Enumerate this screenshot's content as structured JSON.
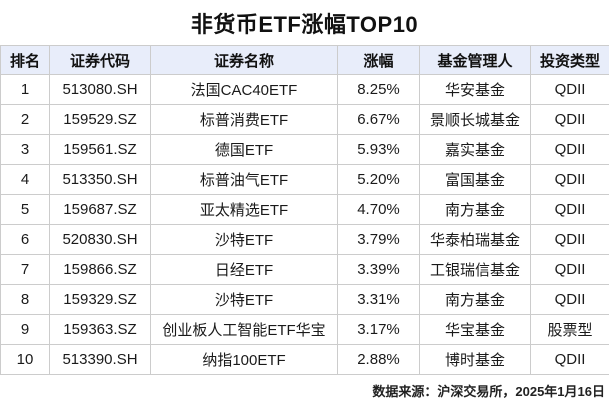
{
  "title": "非货币ETF涨幅TOP10",
  "footer": {
    "source": "数据来源：沪深交易所，2025年1月16日"
  },
  "colors": {
    "header_bg": "#e8edfa",
    "border": "#cccccc",
    "gain_red": "#e85252",
    "text": "#1a1a1a"
  },
  "table": {
    "headers": [
      "排名",
      "证券代码",
      "证券名称",
      "涨幅",
      "基金管理人",
      "投资类型"
    ],
    "rows": [
      {
        "rank": "1",
        "code": "513080.SH",
        "name": "法国CAC40ETF",
        "gain": "8.25%",
        "manager": "华安基金",
        "type": "QDII"
      },
      {
        "rank": "2",
        "code": "159529.SZ",
        "name": "标普消费ETF",
        "gain": "6.67%",
        "manager": "景顺长城基金",
        "type": "QDII"
      },
      {
        "rank": "3",
        "code": "159561.SZ",
        "name": "德国ETF",
        "gain": "5.93%",
        "manager": "嘉实基金",
        "type": "QDII"
      },
      {
        "rank": "4",
        "code": "513350.SH",
        "name": "标普油气ETF",
        "gain": "5.20%",
        "manager": "富国基金",
        "type": "QDII"
      },
      {
        "rank": "5",
        "code": "159687.SZ",
        "name": "亚太精选ETF",
        "gain": "4.70%",
        "manager": "南方基金",
        "type": "QDII"
      },
      {
        "rank": "6",
        "code": "520830.SH",
        "name": "沙特ETF",
        "gain": "3.79%",
        "manager": "华泰柏瑞基金",
        "type": "QDII"
      },
      {
        "rank": "7",
        "code": "159866.SZ",
        "name": "日经ETF",
        "gain": "3.39%",
        "manager": "工银瑞信基金",
        "type": "QDII"
      },
      {
        "rank": "8",
        "code": "159329.SZ",
        "name": "沙特ETF",
        "gain": "3.31%",
        "manager": "南方基金",
        "type": "QDII"
      },
      {
        "rank": "9",
        "code": "159363.SZ",
        "name": "创业板人工智能ETF华宝",
        "gain": "3.17%",
        "manager": "华宝基金",
        "type": "股票型"
      },
      {
        "rank": "10",
        "code": "513390.SH",
        "name": "纳指100ETF",
        "gain": "2.88%",
        "manager": "博时基金",
        "type": "QDII"
      }
    ]
  },
  "chart_data": {
    "type": "table",
    "title": "非货币ETF涨幅TOP10",
    "columns": [
      "排名",
      "证券代码",
      "证券名称",
      "涨幅",
      "基金管理人",
      "投资类型"
    ],
    "rows": [
      [
        "1",
        "513080.SH",
        "法国CAC40ETF",
        "8.25%",
        "华安基金",
        "QDII"
      ],
      [
        "2",
        "159529.SZ",
        "标普消费ETF",
        "6.67%",
        "景顺长城基金",
        "QDII"
      ],
      [
        "3",
        "159561.SZ",
        "德国ETF",
        "5.93%",
        "嘉实基金",
        "QDII"
      ],
      [
        "4",
        "513350.SH",
        "标普油气ETF",
        "5.20%",
        "富国基金",
        "QDII"
      ],
      [
        "5",
        "159687.SZ",
        "亚太精选ETF",
        "4.70%",
        "南方基金",
        "QDII"
      ],
      [
        "6",
        "520830.SH",
        "沙特ETF",
        "3.79%",
        "华泰柏瑞基金",
        "QDII"
      ],
      [
        "7",
        "159866.SZ",
        "日经ETF",
        "3.39%",
        "工银瑞信基金",
        "QDII"
      ],
      [
        "8",
        "159329.SZ",
        "沙特ETF",
        "3.31%",
        "南方基金",
        "QDII"
      ],
      [
        "9",
        "159363.SZ",
        "创业板人工智能ETF华宝",
        "3.17%",
        "华宝基金",
        "股票型"
      ],
      [
        "10",
        "513390.SH",
        "纳指100ETF",
        "2.88%",
        "博时基金",
        "QDII"
      ]
    ],
    "gain_values_percent": [
      8.25,
      6.67,
      5.93,
      5.2,
      4.7,
      3.79,
      3.39,
      3.31,
      3.17,
      2.88
    ],
    "source_note": "数据来源：沪深交易所，2025年1月16日"
  }
}
